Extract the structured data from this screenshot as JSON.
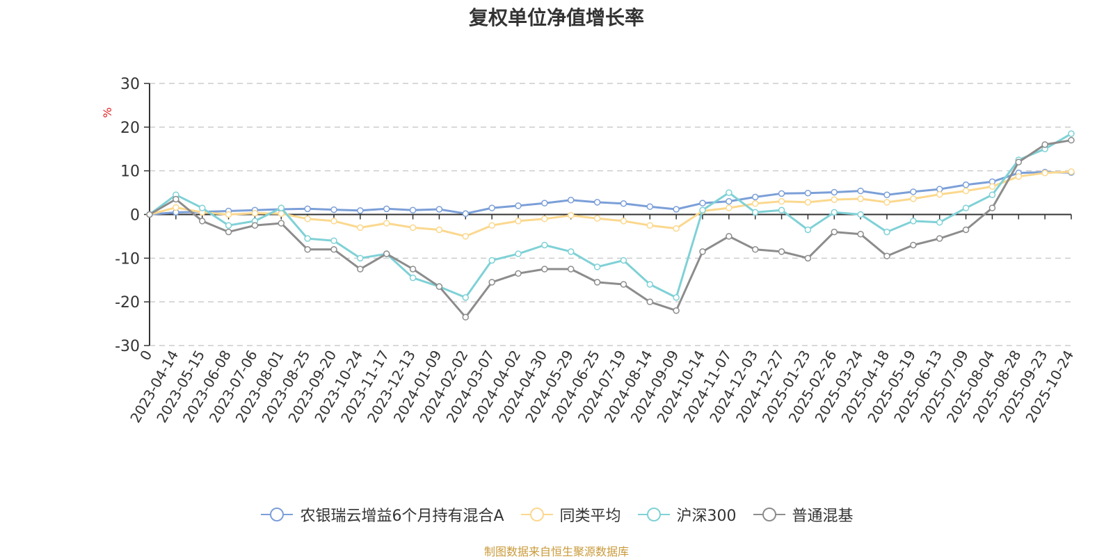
{
  "title": "复权单位净值增长率",
  "source_note": "制图数据来自恒生聚源数据库",
  "colors": {
    "fund": "#7b9fd8",
    "peer": "#fbd88e",
    "hs300": "#7fd1d6",
    "mixed": "#8c8c8c",
    "axis": "#333333",
    "grid": "#cccccc",
    "unit": "#e02020"
  },
  "chart_data": {
    "type": "line",
    "title": "复权单位净值增长率",
    "ylabel": "%",
    "ylim": [
      -30,
      30
    ],
    "yticks": [
      30,
      20,
      10,
      0,
      -10,
      -20,
      -30
    ],
    "grid": "dashed horizontal",
    "legend_position": "bottom",
    "x_tick_labels": [
      "0",
      "2023-04-14",
      "2023-05-15",
      "2023-06-08",
      "2023-07-06",
      "2023-08-01",
      "2023-08-25",
      "2023-09-20",
      "2023-10-24",
      "2023-11-17",
      "2023-12-13",
      "2024-01-09",
      "2024-02-02",
      "2024-03-07",
      "2024-04-02",
      "2024-04-30",
      "2024-05-29",
      "2024-06-25",
      "2024-07-19",
      "2024-08-14",
      "2024-09-09",
      "2024-10-14",
      "2024-11-07",
      "2024-12-03",
      "2024-12-27",
      "2025-01-23",
      "2025-02-26",
      "2025-03-24",
      "2025-04-18",
      "2025-05-19",
      "2025-06-13",
      "2025-07-09",
      "2025-08-04",
      "2025-08-28",
      "2025-09-23",
      "2025-10-24"
    ],
    "x": [
      0,
      1,
      2,
      3,
      4,
      5,
      6,
      7,
      8,
      9,
      10,
      11,
      12,
      13,
      14,
      15,
      16,
      17,
      18,
      19,
      20,
      21,
      22,
      23,
      24,
      25,
      26,
      27,
      28,
      29,
      30,
      31,
      32,
      33,
      34,
      35
    ],
    "series": [
      {
        "name": "农银瑞云增益6个月持有混合A",
        "color_key": "fund",
        "values": [
          0,
          0.5,
          0.6,
          0.8,
          1.0,
          1.2,
          1.3,
          1.1,
          0.9,
          1.3,
          1.0,
          1.2,
          0.2,
          1.5,
          2.0,
          2.6,
          3.3,
          2.8,
          2.5,
          1.8,
          1.2,
          2.6,
          3.0,
          4.0,
          4.8,
          4.9,
          5.1,
          5.4,
          4.5,
          5.2,
          5.8,
          6.8,
          7.5,
          9.5,
          9.7,
          9.6
        ]
      },
      {
        "name": "同类平均",
        "color_key": "peer",
        "values": [
          0,
          1.6,
          0.5,
          0.0,
          0.3,
          0.2,
          -1.0,
          -1.5,
          -3.0,
          -2.0,
          -3.0,
          -3.5,
          -5.0,
          -2.5,
          -1.5,
          -1.0,
          -0.2,
          -0.9,
          -1.5,
          -2.5,
          -3.2,
          0.8,
          1.5,
          2.5,
          3.0,
          2.8,
          3.4,
          3.6,
          2.8,
          3.6,
          4.6,
          5.4,
          6.4,
          8.7,
          9.5,
          9.8
        ]
      },
      {
        "name": "沪深300",
        "color_key": "hs300",
        "values": [
          0,
          4.5,
          1.5,
          -2.5,
          -1.5,
          1.5,
          -5.5,
          -6.0,
          -10.0,
          -9.0,
          -14.5,
          -16.5,
          -19.0,
          -10.5,
          -9.0,
          -7.0,
          -8.5,
          -12.0,
          -10.5,
          -16.0,
          -19.0,
          1.0,
          5.0,
          0.5,
          1.0,
          -3.5,
          0.5,
          0.0,
          -4.0,
          -1.5,
          -1.8,
          1.5,
          4.5,
          12.5,
          15.0,
          18.5
        ]
      },
      {
        "name": "普通混基",
        "color_key": "mixed",
        "values": [
          0,
          3.5,
          -1.5,
          -4.0,
          -2.5,
          -2.0,
          -8.0,
          -8.0,
          -12.5,
          -9.0,
          -12.5,
          -16.5,
          -23.5,
          -15.5,
          -13.5,
          -12.5,
          -12.5,
          -15.5,
          -16.0,
          -20.0,
          -22.0,
          -8.5,
          -5.0,
          -8.0,
          -8.5,
          -10.0,
          -4.0,
          -4.5,
          -9.5,
          -7.0,
          -5.5,
          -3.5,
          1.5,
          12.0,
          16.0,
          17.0
        ]
      }
    ]
  }
}
